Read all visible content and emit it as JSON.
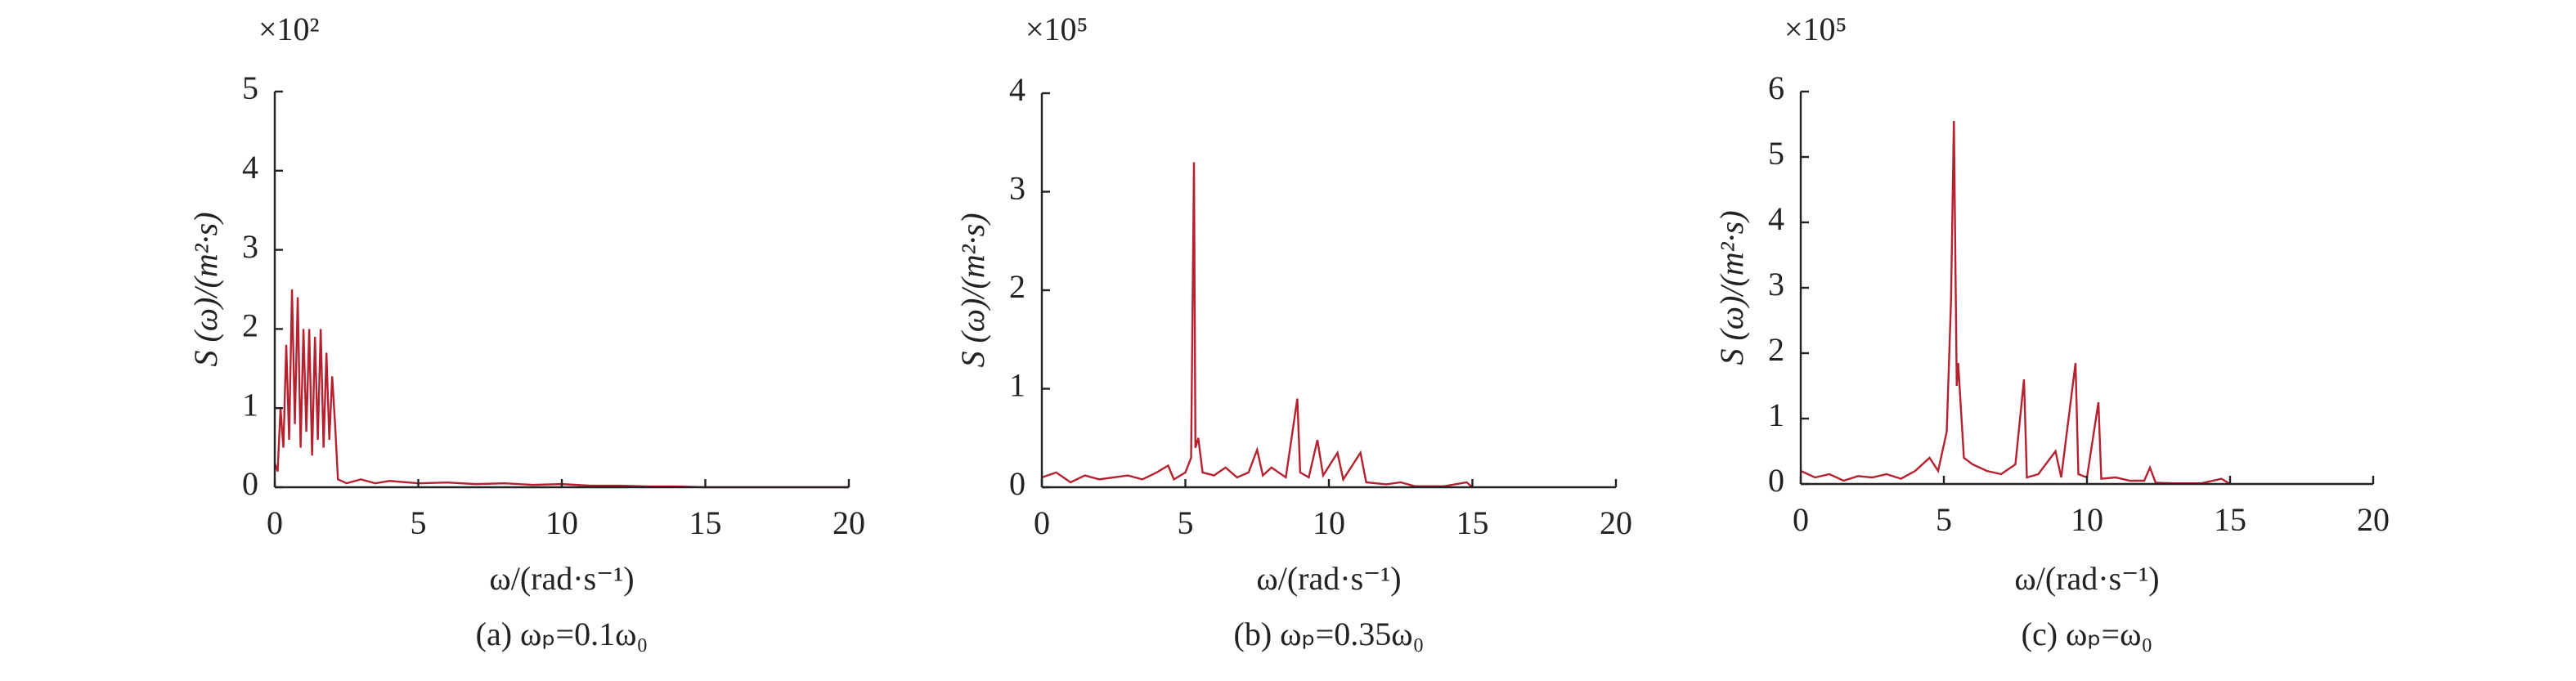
{
  "chart_data": [
    {
      "type": "line",
      "multiplier": "×10²",
      "ylabel": "S (ω)/(m²·s)",
      "xlabel": "ω/(rad·s⁻¹)",
      "caption": "(a) ωₚ=0.1ω₀",
      "xlim": [
        0,
        20
      ],
      "xticks": [
        0,
        5,
        10,
        15,
        20
      ],
      "ylim": [
        0,
        5
      ],
      "yticks": [
        0,
        1,
        2,
        3,
        4,
        5
      ],
      "color": "#b5212e",
      "x": [
        0,
        0.1,
        0.2,
        0.3,
        0.4,
        0.5,
        0.6,
        0.7,
        0.8,
        0.9,
        1.0,
        1.1,
        1.2,
        1.3,
        1.4,
        1.5,
        1.6,
        1.7,
        1.8,
        1.9,
        2.0,
        2.1,
        2.2,
        2.5,
        3,
        3.5,
        4,
        5,
        6,
        7,
        8,
        9,
        10,
        11,
        12,
        13,
        14,
        15,
        20
      ],
      "values": [
        0.3,
        0.2,
        1.0,
        0.5,
        1.8,
        0.6,
        2.5,
        0.8,
        2.4,
        0.5,
        2.0,
        0.7,
        2.0,
        0.4,
        1.9,
        0.6,
        2.0,
        0.5,
        1.7,
        0.6,
        1.4,
        0.8,
        0.1,
        0.05,
        0.1,
        0.05,
        0.08,
        0.05,
        0.06,
        0.04,
        0.05,
        0.03,
        0.04,
        0.02,
        0.02,
        0.01,
        0.01,
        0,
        0
      ]
    },
    {
      "type": "line",
      "multiplier": "×10⁵",
      "ylabel": "S (ω)/(m²·s)",
      "xlabel": "ω/(rad·s⁻¹)",
      "caption": "(b) ωₚ=0.35ω₀",
      "xlim": [
        0,
        20
      ],
      "xticks": [
        0,
        5,
        10,
        15,
        20
      ],
      "ylim": [
        0,
        4
      ],
      "yticks": [
        0,
        1,
        2,
        3,
        4
      ],
      "color": "#b5212e",
      "x": [
        0,
        0.5,
        1,
        1.5,
        2,
        2.5,
        3,
        3.5,
        4,
        4.4,
        4.6,
        5,
        5.2,
        5.3,
        5.35,
        5.45,
        5.6,
        6,
        6.4,
        6.8,
        7.2,
        7.5,
        7.7,
        8,
        8.5,
        8.9,
        9.0,
        9.3,
        9.6,
        9.8,
        10.3,
        10.5,
        11.1,
        11.3,
        12,
        12.5,
        13,
        14,
        14.8,
        15
      ],
      "values": [
        0.1,
        0.15,
        0.05,
        0.12,
        0.08,
        0.1,
        0.12,
        0.08,
        0.15,
        0.22,
        0.08,
        0.15,
        0.3,
        3.3,
        0.4,
        0.5,
        0.15,
        0.12,
        0.2,
        0.1,
        0.15,
        0.38,
        0.12,
        0.2,
        0.1,
        0.9,
        0.15,
        0.1,
        0.48,
        0.12,
        0.35,
        0.08,
        0.35,
        0.05,
        0.03,
        0.05,
        0.01,
        0.01,
        0.05,
        0
      ]
    },
    {
      "type": "line",
      "multiplier": "×10⁵",
      "ylabel": "S (ω)/(m²·s)",
      "xlabel": "ω/(rad·s⁻¹)",
      "caption": "(c) ωₚ=ω₀",
      "xlim": [
        0,
        20
      ],
      "xticks": [
        0,
        5,
        10,
        15,
        20
      ],
      "ylim": [
        0,
        6
      ],
      "yticks": [
        0,
        1,
        2,
        3,
        4,
        5,
        6
      ],
      "color": "#b5212e",
      "x": [
        0,
        0.5,
        1,
        1.5,
        2,
        2.5,
        3,
        3.5,
        4,
        4.5,
        4.8,
        5.1,
        5.25,
        5.35,
        5.45,
        5.5,
        5.7,
        6,
        6.5,
        7,
        7.5,
        7.8,
        7.9,
        8.3,
        8.9,
        9.1,
        9.6,
        9.7,
        10,
        10.4,
        10.5,
        11,
        11.5,
        12,
        12.2,
        12.4,
        13,
        14,
        14.7,
        15
      ],
      "values": [
        0.2,
        0.1,
        0.15,
        0.05,
        0.12,
        0.1,
        0.15,
        0.08,
        0.2,
        0.4,
        0.2,
        0.8,
        2.8,
        5.55,
        1.5,
        1.85,
        0.4,
        0.3,
        0.2,
        0.15,
        0.3,
        1.6,
        0.1,
        0.15,
        0.5,
        0.1,
        1.85,
        0.15,
        0.1,
        1.25,
        0.08,
        0.1,
        0.05,
        0.05,
        0.25,
        0.02,
        0.01,
        0.01,
        0.08,
        0
      ]
    }
  ]
}
